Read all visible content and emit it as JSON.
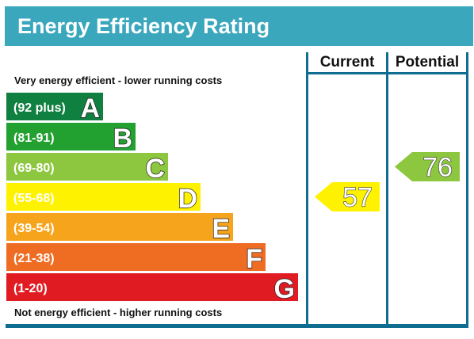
{
  "chart_data": {
    "type": "bar",
    "title": "Energy Efficiency Rating",
    "top_note": "Very energy efficient - lower running costs",
    "bottom_note": "Not energy efficient - higher running costs",
    "columns": {
      "current": "Current",
      "potential": "Potential"
    },
    "bands": [
      {
        "letter": "A",
        "range": "(92 plus)",
        "color": "#0f8040"
      },
      {
        "letter": "B",
        "range": "(81-91)",
        "color": "#22a030"
      },
      {
        "letter": "C",
        "range": "(69-80)",
        "color": "#8dc63f"
      },
      {
        "letter": "D",
        "range": "(55-68)",
        "color": "#fff200"
      },
      {
        "letter": "E",
        "range": "(39-54)",
        "color": "#f7a41d"
      },
      {
        "letter": "F",
        "range": "(21-38)",
        "color": "#ef6c23"
      },
      {
        "letter": "G",
        "range": "(1-20)",
        "color": "#e11b22"
      }
    ],
    "current": {
      "value": 57,
      "band": "D",
      "color": "#fff200"
    },
    "potential": {
      "value": 76,
      "band": "C",
      "color": "#8dc63f"
    },
    "frame_color": "#0e6d91",
    "header_color": "#3aa7bd"
  }
}
